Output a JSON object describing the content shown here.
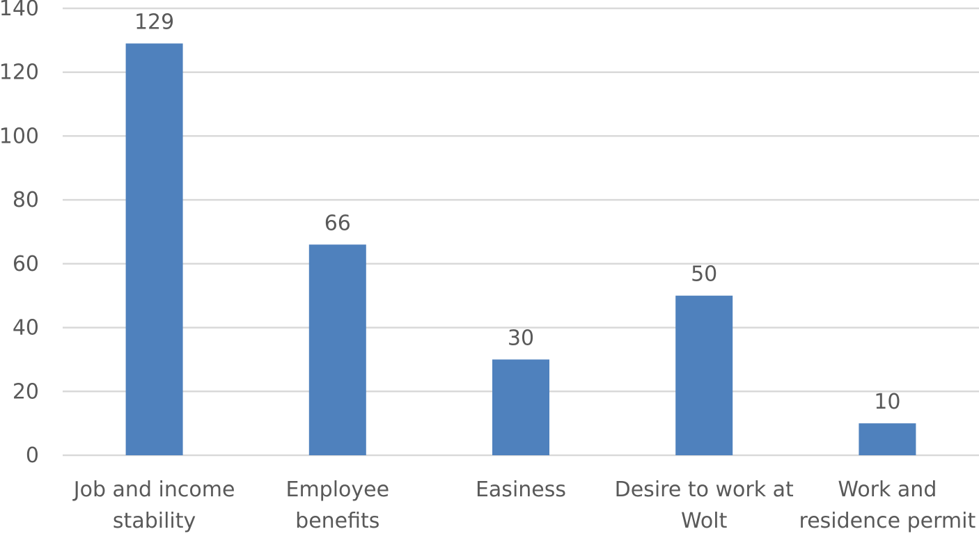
{
  "chart_data": {
    "type": "bar",
    "categories": [
      [
        "Job and income",
        "stability"
      ],
      [
        "Employee",
        "benefits"
      ],
      [
        "Easiness"
      ],
      [
        "Desire to work at",
        "Wolt"
      ],
      [
        "Work and",
        "residence permit"
      ]
    ],
    "values": [
      129,
      66,
      30,
      50,
      10
    ],
    "data_labels": [
      "129",
      "66",
      "30",
      "50",
      "10"
    ],
    "ylim": [
      0,
      140
    ],
    "yticks": [
      0,
      20,
      40,
      60,
      80,
      100,
      120,
      140
    ],
    "ytick_labels": [
      "0",
      "20",
      "40",
      "60",
      "80",
      "100",
      "120",
      "140"
    ],
    "grid": true,
    "legend": "none",
    "colors": {
      "bar": "#4F81BD",
      "grid": "#D9D9D9",
      "text": "#595959"
    }
  }
}
